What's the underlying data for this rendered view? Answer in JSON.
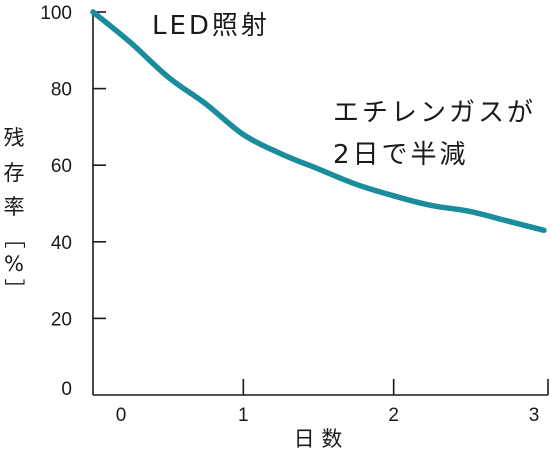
{
  "chart_data": {
    "type": "line",
    "title": "",
    "xlabel": "日 数",
    "ylabel_chars": [
      "残",
      "存",
      "率",
      "［",
      "%",
      "］"
    ],
    "x_ticks": [
      0,
      1,
      2,
      3
    ],
    "y_ticks": [
      0,
      20,
      40,
      60,
      80,
      100
    ],
    "xlim": [
      0,
      3
    ],
    "ylim": [
      0,
      100
    ],
    "grid": false,
    "series": [
      {
        "color": "#1a8c9c",
        "x": [
          0,
          0.25,
          0.5,
          0.75,
          1.0,
          1.25,
          1.5,
          1.75,
          2.0,
          2.25,
          2.5,
          2.75,
          3.0
        ],
        "y": [
          100,
          92,
          83,
          76,
          68,
          63,
          59,
          55,
          52,
          49.5,
          48,
          45.5,
          43
        ]
      }
    ],
    "annotations": [
      {
        "text": "LED照射"
      },
      {
        "text": "エチレンガスが"
      },
      {
        "text": "2日で半減"
      }
    ]
  }
}
